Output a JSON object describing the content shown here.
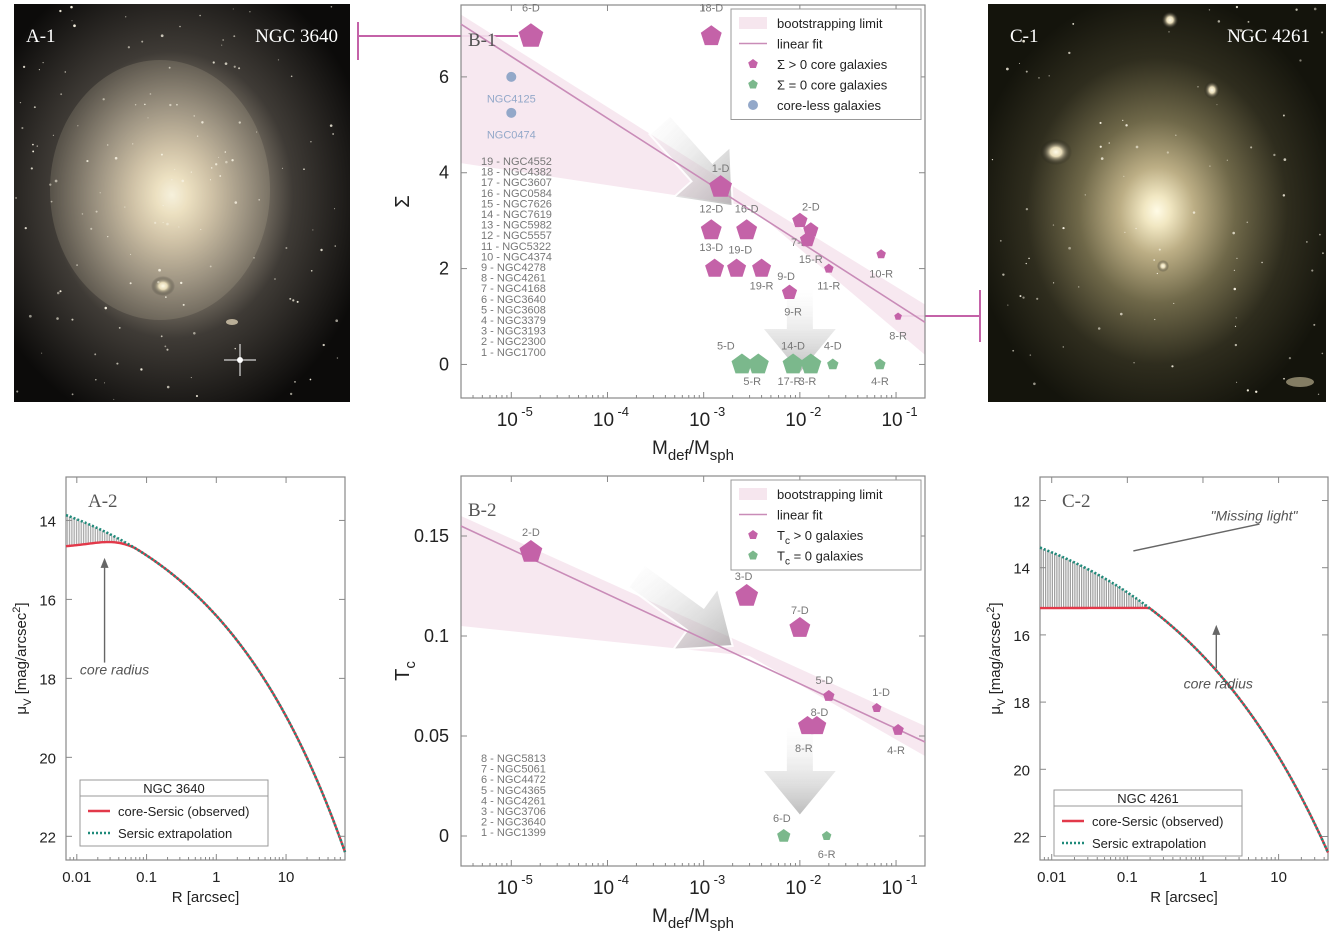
{
  "panels": {
    "a1": {
      "tag": "A-1",
      "name": "NGC 3640"
    },
    "c1": {
      "tag": "C-1",
      "name": "NGC 4261"
    },
    "a2": {
      "tag": "A-2",
      "annotation": "core radius"
    },
    "c2": {
      "tag": "C-2",
      "annotation": "core radius",
      "missing": "\"Missing light\""
    },
    "b1": {
      "tag": "B-1"
    },
    "b2": {
      "tag": "B-2"
    }
  },
  "colors": {
    "core": "#c462a8",
    "zero": "#7bb88c",
    "coreless": "#93a8c9",
    "fit": "#c98cb8",
    "band": "#f6e6ee",
    "red": "#e2394a",
    "teal": "#1f8a7a"
  },
  "chart_data": [
    {
      "id": "B-1",
      "type": "scatter",
      "xlabel": "M",
      "xlabel_sub1": "def",
      "xlabel_mid": "/M",
      "xlabel_sub2": "sph",
      "ylabel": "Σ",
      "xscale": "log",
      "xlim": [
        3e-06,
        0.2
      ],
      "ylim": [
        -0.7,
        7.5
      ],
      "xticks": [
        {
          "v": 1e-05,
          "b": "10",
          "e": "-5"
        },
        {
          "v": 0.0001,
          "b": "10",
          "e": "-4"
        },
        {
          "v": 0.001,
          "b": "10",
          "e": "-3"
        },
        {
          "v": 0.01,
          "b": "10",
          "e": "-2"
        },
        {
          "v": 0.1,
          "b": "10",
          "e": "-1"
        }
      ],
      "yticks": [
        0,
        2,
        4,
        6
      ],
      "legend": {
        "position": "top-right",
        "entries": [
          "bootstrapping limit",
          "linear fit",
          "Σ > 0 core galaxies",
          "Σ = 0 core galaxies",
          "core-less galaxies"
        ]
      },
      "fit": {
        "x": [
          3e-06,
          0.2
        ],
        "y": [
          7.1,
          0.88
        ]
      },
      "band_upper": {
        "x": [
          3e-06,
          0.003,
          0.2
        ],
        "y": [
          7.3,
          3.5,
          1.25
        ]
      },
      "band_lower": {
        "x": [
          3e-06,
          0.003,
          0.2
        ],
        "y": [
          4.2,
          3.3,
          0.2
        ]
      },
      "arrows": [
        {
          "x1": 0.00035,
          "y1": 5.0,
          "x2": 0.002,
          "y2": 3.3
        },
        {
          "x1": 0.01,
          "y1": 1.6,
          "x2": 0.01,
          "y2": -0.2
        }
      ],
      "points": [
        {
          "label": "6-D",
          "x": 1.6e-05,
          "y": 6.85,
          "size": 13,
          "cat": "core",
          "lx": 1.6e-05,
          "ly": 7.45
        },
        {
          "label": "18-D",
          "x": 0.0012,
          "y": 6.85,
          "size": 11,
          "cat": "core",
          "lx": 0.0012,
          "ly": 7.45
        },
        {
          "label": "NGC4125",
          "x": 1e-05,
          "y": 6.0,
          "size": 5,
          "cat": "coreless",
          "lx": 1e-05,
          "ly": 5.55
        },
        {
          "label": "NGC0474",
          "x": 1e-05,
          "y": 5.25,
          "size": 5,
          "cat": "coreless",
          "lx": 1e-05,
          "ly": 4.8
        },
        {
          "label": "1-D",
          "x": 0.0015,
          "y": 3.7,
          "size": 12,
          "cat": "core",
          "lx": 0.0015,
          "ly": 4.1
        },
        {
          "label": "12-D",
          "x": 0.0012,
          "y": 2.8,
          "size": 11,
          "cat": "core",
          "lx": 0.0012,
          "ly": 3.25
        },
        {
          "label": "16-D",
          "x": 0.0028,
          "y": 2.8,
          "size": 11,
          "cat": "core",
          "lx": 0.0028,
          "ly": 3.25
        },
        {
          "label": "2-D",
          "x": 0.01,
          "y": 3.0,
          "size": 8,
          "cat": "core",
          "lx": 0.013,
          "ly": 3.3
        },
        {
          "label": "7-R",
          "x": 0.013,
          "y": 2.8,
          "size": 8,
          "cat": "core",
          "lx": 0.01,
          "ly": 2.55
        },
        {
          "label": "13-D",
          "x": 0.0013,
          "y": 2.0,
          "size": 10,
          "cat": "core",
          "lx": 0.0012,
          "ly": 2.45
        },
        {
          "label": "19-D",
          "x": 0.0022,
          "y": 2.0,
          "size": 10,
          "cat": "core",
          "lx": 0.0024,
          "ly": 2.4
        },
        {
          "label": "x1",
          "x": 0.004,
          "y": 2.0,
          "size": 10,
          "cat": "core",
          "lx": 0.004,
          "ly": 2.0,
          "nolabel": true
        },
        {
          "label": "15-R",
          "x": 0.012,
          "y": 2.6,
          "size": 8,
          "cat": "core",
          "lx": 0.013,
          "ly": 2.2
        },
        {
          "label": "10-R",
          "x": 0.07,
          "y": 2.3,
          "size": 5,
          "cat": "core",
          "lx": 0.07,
          "ly": 1.9
        },
        {
          "label": "11-R",
          "x": 0.02,
          "y": 2.0,
          "size": 5,
          "cat": "core",
          "lx": 0.02,
          "ly": 1.65
        },
        {
          "label": "19-R",
          "x": 0.004,
          "y": 1.7,
          "size": 0,
          "cat": "core",
          "lx": 0.004,
          "ly": 1.65,
          "nolabel": false,
          "textonly": true
        },
        {
          "label": "9-D",
          "x": 0.0078,
          "y": 1.5,
          "size": 8,
          "cat": "core",
          "lx": 0.0072,
          "ly": 1.85
        },
        {
          "label": "9-R",
          "x": 0.0082,
          "y": 1.5,
          "size": 0,
          "cat": "core",
          "lx": 0.0085,
          "ly": 1.1,
          "textonly": true
        },
        {
          "label": "8-R",
          "x": 0.105,
          "y": 1.0,
          "size": 4,
          "cat": "core",
          "lx": 0.105,
          "ly": 0.6
        },
        {
          "label": "5-D",
          "x": 0.0025,
          "y": 0.0,
          "size": 11,
          "cat": "zero",
          "lx": 0.0017,
          "ly": 0.4
        },
        {
          "label": "5-R",
          "x": 0.0037,
          "y": 0.0,
          "size": 11,
          "cat": "zero",
          "lx": 0.0032,
          "ly": -0.35
        },
        {
          "label": "14-D",
          "x": 0.0085,
          "y": 0.0,
          "size": 11,
          "cat": "zero",
          "lx": 0.0085,
          "ly": 0.4
        },
        {
          "label": "17-R",
          "x": 0.0078,
          "y": 0.0,
          "size": 0,
          "cat": "zero",
          "lx": 0.0078,
          "ly": -0.35,
          "textonly": true
        },
        {
          "label": "3-R",
          "x": 0.013,
          "y": 0.0,
          "size": 11,
          "cat": "zero",
          "lx": 0.012,
          "ly": -0.35
        },
        {
          "label": "4-D",
          "x": 0.022,
          "y": 0.0,
          "size": 6,
          "cat": "zero",
          "lx": 0.022,
          "ly": 0.4
        },
        {
          "label": "4-R",
          "x": 0.068,
          "y": 0.0,
          "size": 6,
          "cat": "zero",
          "lx": 0.068,
          "ly": -0.35
        }
      ],
      "galaxy_list": [
        "19 - NGC4552",
        "18 - NGC4382",
        "17 - NGC3607",
        "16 - NGC0584",
        "15 - NGC7626",
        "14 - NGC7619",
        "13 - NGC5982",
        "12 - NGC5557",
        "11 - NGC5322",
        "10 - NGC4374",
        "9 - NGC4278",
        "8 - NGC4261",
        "7 - NGC4168",
        "6 - NGC3640",
        "5 - NGC3608",
        "4 - NGC3379",
        "3 - NGC3193",
        "2 - NGC2300",
        "1 - NGC1700"
      ]
    },
    {
      "id": "B-2",
      "type": "scatter",
      "xlabel": "M",
      "xlabel_sub1": "def",
      "xlabel_mid": "/M",
      "xlabel_sub2": "sph",
      "ylabel": "T",
      "ylabel_sub": "c",
      "xscale": "log",
      "xlim": [
        3e-06,
        0.2
      ],
      "ylim": [
        -0.015,
        0.18
      ],
      "xticks": [
        {
          "v": 1e-05,
          "b": "10",
          "e": "-5"
        },
        {
          "v": 0.0001,
          "b": "10",
          "e": "-4"
        },
        {
          "v": 0.001,
          "b": "10",
          "e": "-3"
        },
        {
          "v": 0.01,
          "b": "10",
          "e": "-2"
        },
        {
          "v": 0.1,
          "b": "10",
          "e": "-1"
        }
      ],
      "yticks": [
        0,
        0.05,
        0.1,
        0.15
      ],
      "legend": {
        "position": "top-right",
        "entries": [
          "bootstrapping limit",
          "linear fit",
          "T > 0 galaxies",
          "T = 0 galaxies"
        ],
        "subs": [
          "c",
          "c"
        ]
      },
      "fit": {
        "x": [
          3e-06,
          0.2
        ],
        "y": [
          0.155,
          0.047
        ]
      },
      "band_upper": {
        "x": [
          3e-06,
          0.003,
          0.2
        ],
        "y": [
          0.16,
          0.095,
          0.055
        ]
      },
      "band_lower": {
        "x": [
          3e-06,
          0.003,
          0.2
        ],
        "y": [
          0.105,
          0.09,
          0.04
        ]
      },
      "arrows": [
        {
          "x1": 0.0002,
          "y1": 0.13,
          "x2": 0.002,
          "y2": 0.095
        },
        {
          "x1": 0.01,
          "y1": 0.055,
          "x2": 0.01,
          "y2": 0.01
        }
      ],
      "points": [
        {
          "label": "2-D",
          "x": 1.6e-05,
          "y": 0.142,
          "size": 12,
          "cat": "core",
          "lx": 1.6e-05,
          "ly": 0.152
        },
        {
          "label": "3-D",
          "x": 0.0028,
          "y": 0.12,
          "size": 12,
          "cat": "core",
          "lx": 0.0026,
          "ly": 0.13
        },
        {
          "label": "7-D",
          "x": 0.01,
          "y": 0.104,
          "size": 11,
          "cat": "core",
          "lx": 0.01,
          "ly": 0.113
        },
        {
          "label": "5-D",
          "x": 0.02,
          "y": 0.07,
          "size": 6,
          "cat": "core",
          "lx": 0.018,
          "ly": 0.078
        },
        {
          "label": "1-D",
          "x": 0.063,
          "y": 0.064,
          "size": 5,
          "cat": "core",
          "lx": 0.07,
          "ly": 0.072
        },
        {
          "label": "8-D",
          "x": 0.015,
          "y": 0.055,
          "size": 10,
          "cat": "core",
          "lx": 0.016,
          "ly": 0.062
        },
        {
          "label": "8-R",
          "x": 0.012,
          "y": 0.055,
          "size": 10,
          "cat": "core",
          "lx": 0.011,
          "ly": 0.044
        },
        {
          "label": "4-R",
          "x": 0.105,
          "y": 0.053,
          "size": 6,
          "cat": "core",
          "lx": 0.1,
          "ly": 0.043
        },
        {
          "label": "6-D",
          "x": 0.0068,
          "y": 0.0,
          "size": 7,
          "cat": "zero",
          "lx": 0.0065,
          "ly": 0.009
        },
        {
          "label": "6-R",
          "x": 0.019,
          "y": 0.0,
          "size": 5,
          "cat": "zero",
          "lx": 0.019,
          "ly": -0.009
        }
      ],
      "galaxy_list": [
        "8 - NGC5813",
        "7 - NGC5061",
        "6 - NGC4472",
        "5 - NGC4365",
        "4 - NGC4261",
        "3 - NGC3706",
        "2 - NGC3640",
        "1 - NGC1399"
      ]
    },
    {
      "id": "A-2",
      "type": "line",
      "xlabel": "R [arcsec]",
      "ylabel": "μ",
      "ylabel_sub": "V",
      "ylabel_rest": " [mag/arcsec",
      "ylabel_sup": "2",
      "ylabel_end": "]",
      "xscale": "log",
      "xlim": [
        0.007,
        70
      ],
      "ylim": [
        12.9,
        22.6
      ],
      "yreversed": true,
      "xticks": [
        {
          "v": 0.01,
          "t": "0.01"
        },
        {
          "v": 0.1,
          "t": "0.1"
        },
        {
          "v": 1,
          "t": "1"
        },
        {
          "v": 10,
          "t": "10"
        }
      ],
      "yticks": [
        14,
        16,
        18,
        20,
        22
      ],
      "legend": {
        "title": "NGC 3640",
        "entries": [
          "core-Sersic (observed)",
          "Sersic extrapolation"
        ]
      },
      "sersic": {
        "mu0": 12.6,
        "b": 4.0,
        "Re": 30,
        "n": 4.5
      },
      "core": {
        "mu_flat": 14.7,
        "rb": 0.035
      },
      "series": [
        {
          "name": "core-Sersic (observed)"
        },
        {
          "name": "Sersic extrapolation"
        }
      ],
      "annotation": {
        "x": 0.025,
        "y": 17.3
      }
    },
    {
      "id": "C-2",
      "type": "line",
      "xlabel": "R [arcsec]",
      "ylabel": "μ",
      "ylabel_sub": "V",
      "ylabel_rest": " [mag/arcsec",
      "ylabel_sup": "2",
      "ylabel_end": "]",
      "xscale": "log",
      "xlim": [
        0.007,
        45
      ],
      "ylim": [
        11.3,
        22.7
      ],
      "yreversed": true,
      "xticks": [
        {
          "v": 0.01,
          "t": "0.01"
        },
        {
          "v": 0.1,
          "t": "0.1"
        },
        {
          "v": 1,
          "t": "1"
        },
        {
          "v": 10,
          "t": "10"
        }
      ],
      "yticks": [
        12,
        14,
        16,
        18,
        20,
        22
      ],
      "legend": {
        "title": "NGC 4261",
        "entries": [
          "core-Sersic (observed)",
          "Sersic extrapolation"
        ]
      },
      "sersic": {
        "mu0": 11.5,
        "b": 5.0,
        "Re": 35,
        "n": 5.0
      },
      "core": {
        "mu_flat": 15.2,
        "rb": 1.6
      },
      "series": [
        {
          "name": "core-Sersic (observed)"
        },
        {
          "name": "Sersic extrapolation"
        }
      ],
      "annotation": {
        "x": 1.5,
        "y": 17.5
      }
    }
  ]
}
